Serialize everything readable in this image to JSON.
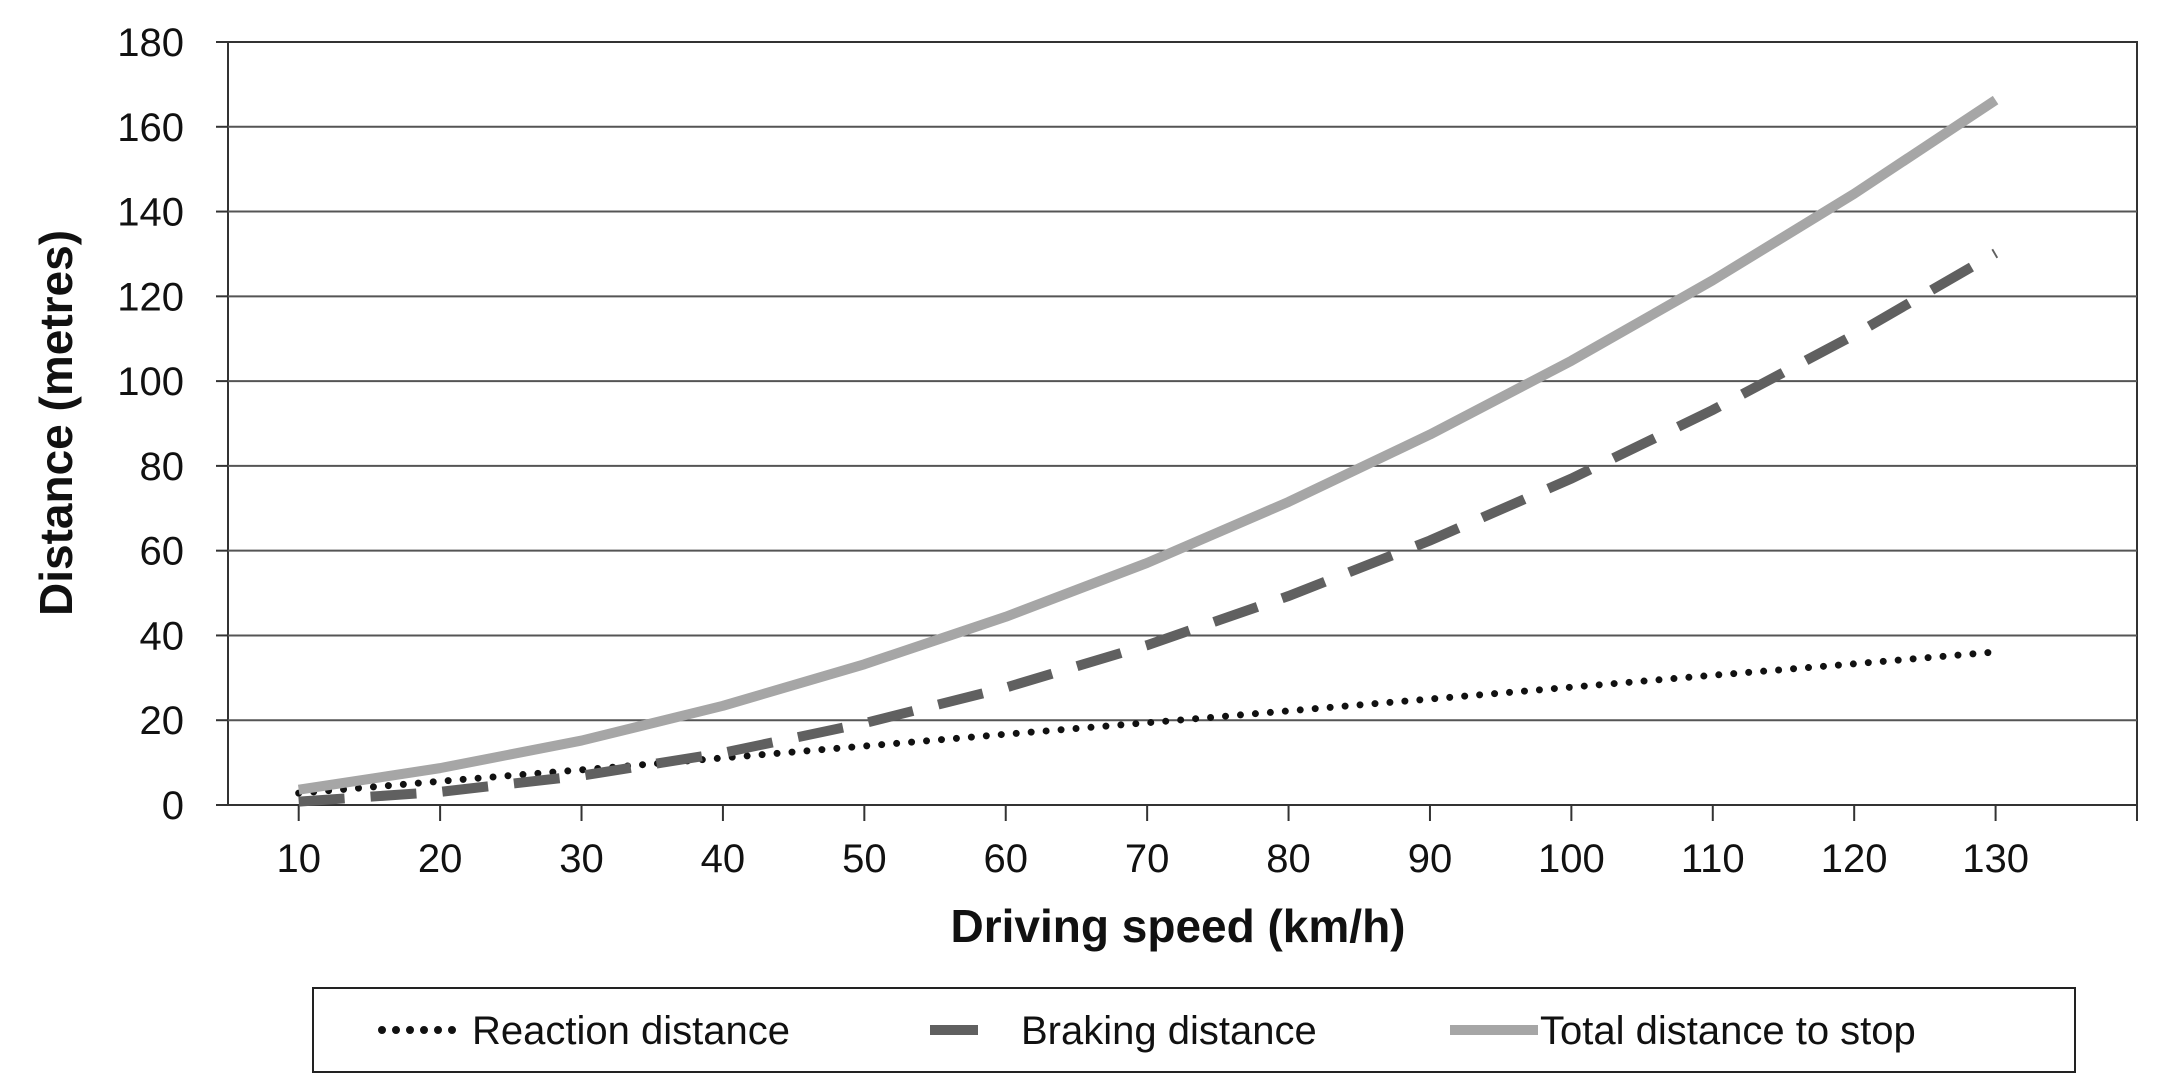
{
  "chart_data": {
    "type": "line",
    "title": "",
    "xlabel": "Driving speed (km/h)",
    "ylabel": "Distance (metres)",
    "categories": [
      10,
      20,
      30,
      40,
      50,
      60,
      70,
      80,
      90,
      100,
      110,
      120,
      130
    ],
    "ylim": [
      0,
      180
    ],
    "yticks": [
      0,
      20,
      40,
      60,
      80,
      100,
      120,
      140,
      160,
      180
    ],
    "grid": "horizontal",
    "legend_position": "bottom",
    "series": [
      {
        "name": "Reaction distance",
        "style": "dotted",
        "color": "#111111",
        "values": [
          2.8,
          5.6,
          8.3,
          11.1,
          13.9,
          16.7,
          19.4,
          22.2,
          25.0,
          27.8,
          30.6,
          33.3,
          36.1
        ]
      },
      {
        "name": "Braking distance",
        "style": "dashed",
        "color": "#606060",
        "values": [
          0.8,
          3.1,
          6.9,
          12.3,
          19.3,
          27.7,
          37.7,
          49.3,
          62.4,
          77.0,
          93.2,
          110.9,
          130.2
        ]
      },
      {
        "name": "Total distance to stop",
        "style": "solid",
        "color": "#a6a6a6",
        "values": [
          3.6,
          8.7,
          15.2,
          23.4,
          33.2,
          44.4,
          57.1,
          71.5,
          87.4,
          104.8,
          123.8,
          144.2,
          166.3
        ]
      }
    ]
  }
}
